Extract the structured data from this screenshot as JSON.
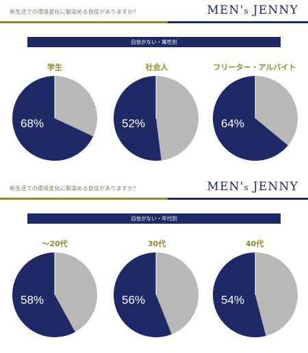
{
  "panels": [
    {
      "question": "新生活での環境変化に馴染める自信がありますか？",
      "brand": {
        "main": "MEN",
        "apostrophe": "'",
        "small": "s",
        "tail": "JENNY"
      },
      "banner": "自信がない・属性別"
    },
    {
      "question": "新生活での環境変化に馴染める自信がありますか？",
      "brand": {
        "main": "MEN",
        "apostrophe": "'",
        "small": "s",
        "tail": "JENNY"
      },
      "banner": "自信がない・年代別"
    }
  ],
  "colors": {
    "navy": "#1f2966",
    "grey": "#b9b8b9",
    "olive": "#8e8a2c"
  },
  "chart_data": [
    {
      "type": "pie",
      "title": "自信がない・属性別",
      "categories": [
        "学生",
        "社会人",
        "フリーター・アルバイト"
      ],
      "values": [
        68,
        52,
        64
      ],
      "labels": [
        "68%",
        "52%",
        "64%"
      ]
    },
    {
      "type": "pie",
      "title": "自信がない・年代別",
      "categories": [
        "〜20代",
        "30代",
        "40代"
      ],
      "values": [
        58,
        56,
        54
      ],
      "labels": [
        "58%",
        "56%",
        "54%"
      ]
    }
  ]
}
